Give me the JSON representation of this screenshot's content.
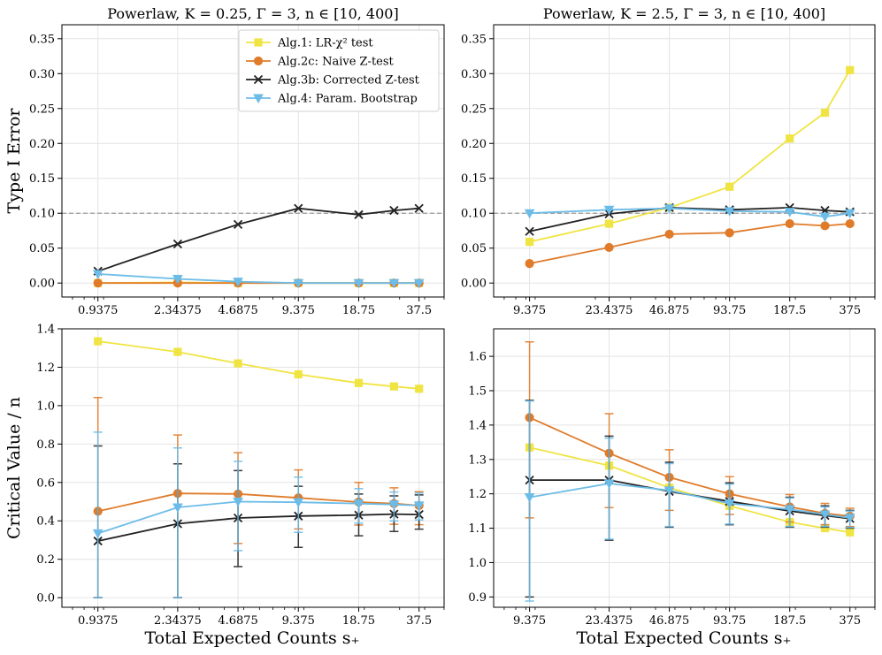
{
  "figure": {
    "xlabel_shared": "Total Expected Counts s₊"
  },
  "legend": [
    {
      "name": "Alg.1: LR-χ² test",
      "color": "#f0e442",
      "marker": "square"
    },
    {
      "name": "Alg.2c: Naive Z-test",
      "color": "#e07b2a",
      "marker": "circle"
    },
    {
      "name": "Alg.3b: Corrected Z-test",
      "color": "#222222",
      "marker": "x"
    },
    {
      "name": "Alg.4: Param. Bootstrap",
      "color": "#6cbce8",
      "marker": "triangle-down"
    }
  ],
  "chart_data": [
    {
      "id": "top-left",
      "type": "line",
      "title": "Powerlaw, K = 0.25, Γ = 3, n ∈ [10, 400]",
      "ylabel": "Type I Error",
      "xlabel": "",
      "xscale": "log",
      "xlim": [
        0.62,
        50
      ],
      "ylim": [
        -0.02,
        0.37
      ],
      "yticks": [
        0.0,
        0.05,
        0.1,
        0.15,
        0.2,
        0.25,
        0.3,
        0.35
      ],
      "ytick_labels": [
        "0.00",
        "0.05",
        "0.10",
        "0.15",
        "0.20",
        "0.25",
        "0.30",
        "0.35"
      ],
      "xticks": [
        0.9375,
        2.34375,
        4.6875,
        9.375,
        18.75,
        37.5
      ],
      "xtick_labels": [
        "0.9375",
        "2.34375",
        "4.6875",
        "9.375",
        "18.75",
        "37.5"
      ],
      "reference_line": 0.1,
      "x": [
        0.9375,
        2.34375,
        4.6875,
        9.375,
        18.75,
        28.125,
        37.5
      ],
      "series": [
        {
          "name": "Alg.1: LR-χ² test",
          "values": [
            0.0,
            0.001,
            0.0,
            0.0,
            0.0,
            0.0,
            0.0
          ]
        },
        {
          "name": "Alg.2c: Naive Z-test",
          "values": [
            0.0,
            0.0,
            0.0,
            0.0,
            0.0,
            0.0,
            0.0
          ]
        },
        {
          "name": "Alg.3b: Corrected Z-test",
          "values": [
            0.017,
            0.056,
            0.084,
            0.107,
            0.098,
            0.104,
            0.107
          ]
        },
        {
          "name": "Alg.4: Param. Bootstrap",
          "values": [
            0.013,
            0.006,
            0.002,
            0.0,
            0.0,
            0.0,
            0.0
          ]
        }
      ]
    },
    {
      "id": "top-right",
      "type": "line",
      "title": "Powerlaw, K = 2.5, Γ = 3, n ∈ [10, 400]",
      "ylabel": "",
      "xlabel": "",
      "xscale": "log",
      "xlim": [
        6.2,
        500
      ],
      "ylim": [
        -0.02,
        0.37
      ],
      "yticks": [
        0.0,
        0.05,
        0.1,
        0.15,
        0.2,
        0.25,
        0.3,
        0.35
      ],
      "ytick_labels": [
        "0.00",
        "0.05",
        "0.10",
        "0.15",
        "0.20",
        "0.25",
        "0.30",
        "0.35"
      ],
      "xticks": [
        9.375,
        23.4375,
        46.875,
        93.75,
        187.5,
        375
      ],
      "xtick_labels": [
        "9.375",
        "23.4375",
        "46.875",
        "93.75",
        "187.5",
        "375"
      ],
      "reference_line": 0.1,
      "x": [
        9.375,
        23.4375,
        46.875,
        93.75,
        187.5,
        281.25,
        375
      ],
      "series": [
        {
          "name": "Alg.1: LR-χ² test",
          "values": [
            0.059,
            0.085,
            0.108,
            0.138,
            0.207,
            0.244,
            0.305
          ]
        },
        {
          "name": "Alg.2c: Naive Z-test",
          "values": [
            0.028,
            0.051,
            0.07,
            0.072,
            0.085,
            0.082,
            0.085
          ]
        },
        {
          "name": "Alg.3b: Corrected Z-test",
          "values": [
            0.074,
            0.099,
            0.108,
            0.105,
            0.108,
            0.104,
            0.102
          ]
        },
        {
          "name": "Alg.4: Param. Bootstrap",
          "values": [
            0.1,
            0.105,
            0.107,
            0.103,
            0.102,
            0.095,
            0.1
          ]
        }
      ]
    },
    {
      "id": "bottom-left",
      "type": "line",
      "title": "",
      "ylabel": "Critical Value / n",
      "xlabel": "Total Expected Counts s₊",
      "xscale": "log",
      "xlim": [
        0.62,
        50
      ],
      "ylim": [
        -0.05,
        1.4
      ],
      "yticks": [
        0.0,
        0.2,
        0.4,
        0.6,
        0.8,
        1.0,
        1.2,
        1.4
      ],
      "ytick_labels": [
        "0.0",
        "0.2",
        "0.4",
        "0.6",
        "0.8",
        "1.0",
        "1.2",
        "1.4"
      ],
      "xticks": [
        0.9375,
        2.34375,
        4.6875,
        9.375,
        18.75,
        37.5
      ],
      "xtick_labels": [
        "0.9375",
        "2.34375",
        "4.6875",
        "9.375",
        "18.75",
        "37.5"
      ],
      "x": [
        0.9375,
        2.34375,
        4.6875,
        9.375,
        18.75,
        28.125,
        37.5
      ],
      "series": [
        {
          "name": "Alg.1: LR-χ² test",
          "values": [
            1.335,
            1.28,
            1.22,
            1.163,
            1.118,
            1.1,
            1.088
          ],
          "err_lo": [
            1.335,
            1.28,
            1.22,
            1.163,
            1.118,
            1.1,
            1.088
          ],
          "err_hi": [
            1.335,
            1.28,
            1.22,
            1.163,
            1.118,
            1.1,
            1.088
          ]
        },
        {
          "name": "Alg.2c: Naive Z-test",
          "values": [
            0.45,
            0.543,
            0.54,
            0.52,
            0.498,
            0.49,
            0.48
          ],
          "err_lo": [
            0.0,
            0.0,
            0.282,
            0.358,
            0.378,
            0.382,
            0.38
          ],
          "err_hi": [
            1.042,
            0.847,
            0.755,
            0.665,
            0.6,
            0.572,
            0.552
          ]
        },
        {
          "name": "Alg.3b: Corrected Z-test",
          "values": [
            0.295,
            0.385,
            0.415,
            0.425,
            0.43,
            0.435,
            0.433
          ],
          "err_lo": [
            0.0,
            0.0,
            0.162,
            0.262,
            0.322,
            0.345,
            0.357
          ],
          "err_hi": [
            0.79,
            0.697,
            0.662,
            0.58,
            0.54,
            0.53,
            0.535
          ]
        },
        {
          "name": "Alg.4: Param. Bootstrap",
          "values": [
            0.335,
            0.47,
            0.5,
            0.497,
            0.49,
            0.485,
            0.48
          ],
          "err_lo": [
            0.0,
            0.0,
            0.245,
            0.34,
            0.388,
            0.4,
            0.405
          ],
          "err_hi": [
            0.862,
            0.78,
            0.71,
            0.628,
            0.568,
            0.55,
            0.545
          ]
        }
      ]
    },
    {
      "id": "bottom-right",
      "type": "line",
      "title": "",
      "ylabel": "",
      "xlabel": "Total Expected Counts s₊",
      "xscale": "log",
      "xlim": [
        6.2,
        500
      ],
      "ylim": [
        0.87,
        1.68
      ],
      "yticks": [
        0.9,
        1.0,
        1.1,
        1.2,
        1.3,
        1.4,
        1.5,
        1.6
      ],
      "ytick_labels": [
        "0.9",
        "1.0",
        "1.1",
        "1.2",
        "1.3",
        "1.4",
        "1.5",
        "1.6"
      ],
      "xticks": [
        9.375,
        23.4375,
        46.875,
        93.75,
        187.5,
        375
      ],
      "xtick_labels": [
        "9.375",
        "23.4375",
        "46.875",
        "93.75",
        "187.5",
        "375"
      ],
      "x": [
        9.375,
        23.4375,
        46.875,
        93.75,
        187.5,
        281.25,
        375
      ],
      "series": [
        {
          "name": "Alg.1: LR-χ² test",
          "values": [
            1.335,
            1.282,
            1.218,
            1.165,
            1.118,
            1.1,
            1.088
          ],
          "err_lo": [
            1.335,
            1.282,
            1.218,
            1.165,
            1.118,
            1.1,
            1.088
          ],
          "err_hi": [
            1.335,
            1.282,
            1.218,
            1.165,
            1.118,
            1.1,
            1.088
          ]
        },
        {
          "name": "Alg.2c: Naive Z-test",
          "values": [
            1.422,
            1.318,
            1.248,
            1.2,
            1.162,
            1.143,
            1.135
          ],
          "err_lo": [
            1.13,
            1.16,
            1.152,
            1.14,
            1.118,
            1.11,
            1.105
          ],
          "err_hi": [
            1.642,
            1.433,
            1.328,
            1.25,
            1.198,
            1.172,
            1.158
          ]
        },
        {
          "name": "Alg.3b: Corrected Z-test",
          "values": [
            1.24,
            1.24,
            1.207,
            1.178,
            1.15,
            1.137,
            1.128
          ],
          "err_lo": [
            0.9,
            1.065,
            1.103,
            1.11,
            1.103,
            1.103,
            1.1
          ],
          "err_hi": [
            1.472,
            1.368,
            1.292,
            1.232,
            1.19,
            1.165,
            1.152
          ]
        },
        {
          "name": "Alg.4: Param. Bootstrap",
          "values": [
            1.19,
            1.23,
            1.21,
            1.172,
            1.155,
            1.14,
            1.13
          ],
          "err_lo": [
            0.888,
            1.068,
            1.105,
            1.112,
            1.105,
            1.105,
            1.102
          ],
          "err_hi": [
            1.47,
            1.362,
            1.288,
            1.228,
            1.188,
            1.162,
            1.15
          ]
        }
      ]
    }
  ]
}
